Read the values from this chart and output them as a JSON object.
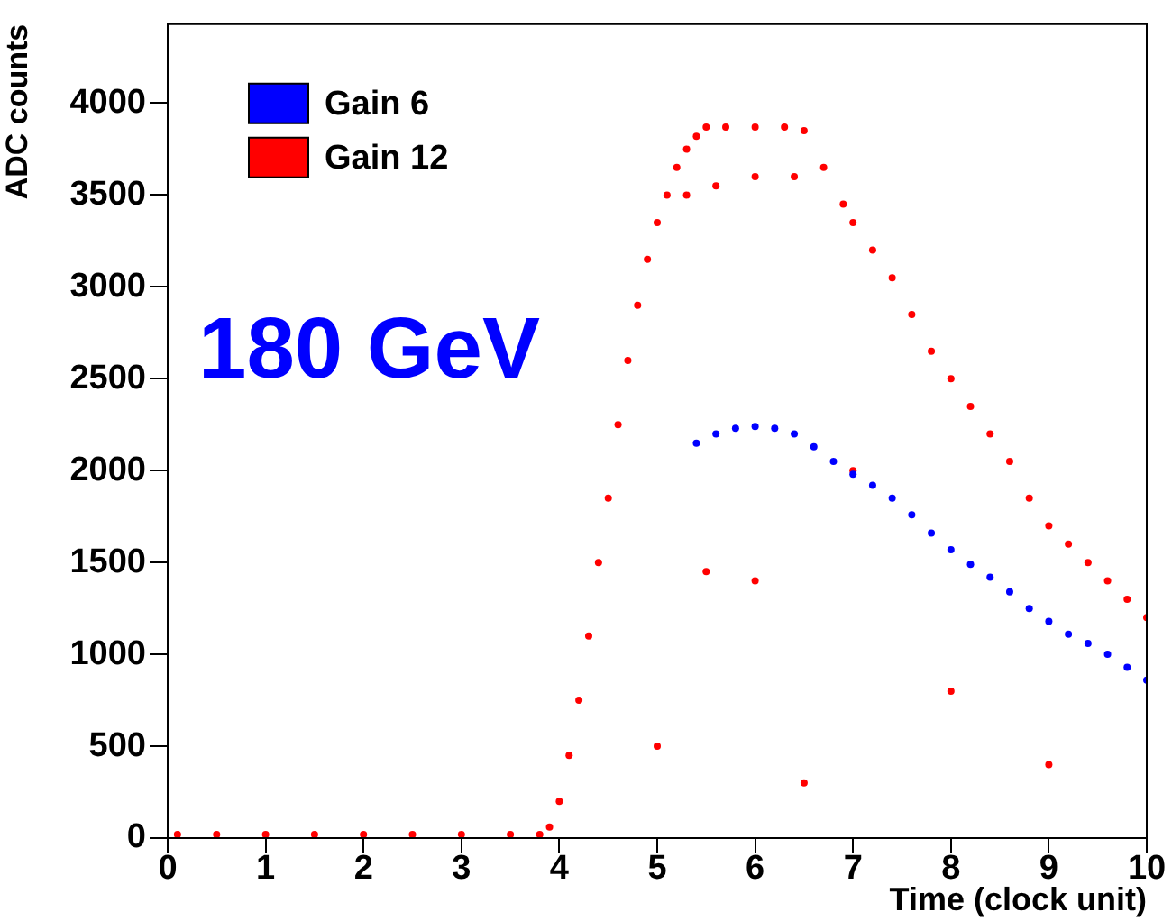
{
  "chart_data": {
    "type": "scatter",
    "xlabel": "Time (clock unit)",
    "ylabel": "ADC counts",
    "annotations": [
      "180 GeV"
    ],
    "xlim": [
      0,
      10
    ],
    "ylim": [
      0,
      4430
    ],
    "xticks": [
      0,
      1,
      2,
      3,
      4,
      5,
      6,
      7,
      8,
      9,
      10
    ],
    "yticks": [
      0,
      500,
      1000,
      1500,
      2000,
      2500,
      3000,
      3500,
      4000
    ],
    "grid": false,
    "legend": "top left",
    "marker": "circle",
    "series": [
      {
        "name": "Gain 6",
        "color": "#0000ff",
        "x": [
          5.4,
          5.6,
          5.8,
          6.0,
          6.2,
          6.4,
          6.6,
          6.8,
          7.0,
          7.2,
          7.4,
          7.6,
          7.8,
          8.0,
          8.2,
          8.4,
          8.6,
          8.8,
          9.0,
          9.2,
          9.4,
          9.6,
          9.8,
          10
        ],
        "values": [
          2150,
          2200,
          2230,
          2240,
          2230,
          2200,
          2130,
          2050,
          1980,
          1920,
          1850,
          1760,
          1660,
          1570,
          1490,
          1420,
          1340,
          1250,
          1180,
          1110,
          1060,
          1000,
          930,
          860
        ]
      },
      {
        "name": "Gain 12",
        "color": "#ff0000",
        "x": [
          0.1,
          0.5,
          1,
          1.5,
          2,
          2.5,
          3,
          3.5,
          3.8,
          3.9,
          4.0,
          4.1,
          4.2,
          4.3,
          4.4,
          4.5,
          4.6,
          4.7,
          4.8,
          4.9,
          5.0,
          5.1,
          5.2,
          5.3,
          5.4,
          5.5,
          5.7,
          6.0,
          6.3,
          6.5,
          6.7,
          6.9,
          7.0,
          7.2,
          7.4,
          7.6,
          7.8,
          8.0,
          8.2,
          8.4,
          8.6,
          8.8,
          9.0,
          9.2,
          9.4,
          9.6,
          9.8,
          10,
          5.3,
          5.6,
          6.0,
          6.4,
          5.5,
          6.0,
          7.0,
          8.0,
          5.0,
          6.5,
          9.0
        ],
        "values": [
          20,
          20,
          20,
          20,
          20,
          20,
          20,
          20,
          20,
          60,
          200,
          450,
          750,
          1100,
          1500,
          1850,
          2250,
          2600,
          2900,
          3150,
          3350,
          3500,
          3650,
          3750,
          3820,
          3870,
          3870,
          3870,
          3870,
          3850,
          3650,
          3450,
          3350,
          3200,
          3050,
          2850,
          2650,
          2500,
          2350,
          2200,
          2050,
          1850,
          1700,
          1600,
          1500,
          1400,
          1300,
          1200,
          3500,
          3550,
          3600,
          3600,
          1450,
          1400,
          2000,
          800,
          500,
          300,
          400
        ]
      }
    ]
  }
}
